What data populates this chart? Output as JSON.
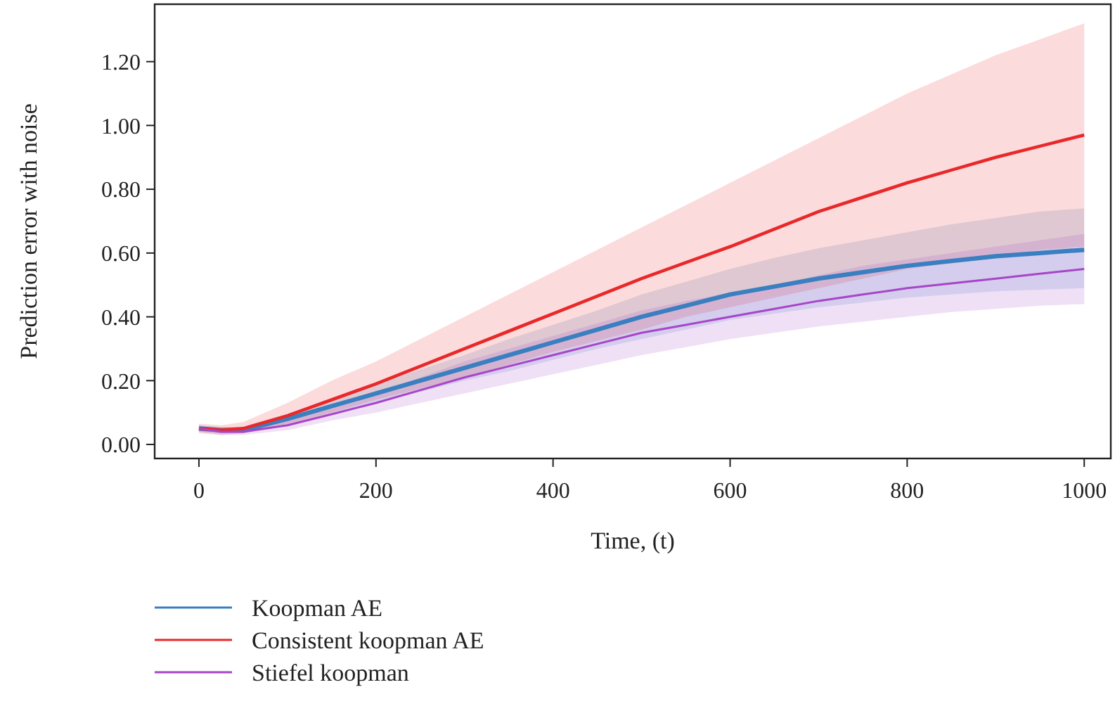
{
  "chart_data": {
    "type": "line",
    "xlabel": "Time, (t)",
    "ylabel": "Prediction error with noise",
    "x": [
      0,
      25,
      50,
      100,
      150,
      200,
      250,
      300,
      350,
      400,
      450,
      500,
      550,
      600,
      650,
      700,
      750,
      800,
      850,
      900,
      950,
      1000
    ],
    "series": [
      {
        "name": "Koopman AE",
        "color": "#3a7fc0",
        "values": [
          0.05,
          0.045,
          0.045,
          0.08,
          0.12,
          0.16,
          0.2,
          0.24,
          0.28,
          0.32,
          0.36,
          0.4,
          0.435,
          0.47,
          0.495,
          0.52,
          0.54,
          0.56,
          0.575,
          0.59,
          0.6,
          0.61
        ],
        "lower": [
          0.04,
          0.035,
          0.035,
          0.065,
          0.1,
          0.13,
          0.165,
          0.2,
          0.23,
          0.265,
          0.3,
          0.33,
          0.36,
          0.39,
          0.41,
          0.43,
          0.445,
          0.46,
          0.47,
          0.48,
          0.485,
          0.49
        ],
        "upper": [
          0.06,
          0.055,
          0.055,
          0.095,
          0.14,
          0.19,
          0.235,
          0.28,
          0.33,
          0.375,
          0.42,
          0.47,
          0.51,
          0.55,
          0.585,
          0.615,
          0.64,
          0.665,
          0.69,
          0.71,
          0.73,
          0.74
        ]
      },
      {
        "name": "Consistent koopman AE",
        "color": "#e8282a",
        "values": [
          0.05,
          0.045,
          0.05,
          0.09,
          0.14,
          0.19,
          0.245,
          0.3,
          0.355,
          0.41,
          0.465,
          0.52,
          0.57,
          0.62,
          0.675,
          0.73,
          0.775,
          0.82,
          0.86,
          0.9,
          0.935,
          0.97
        ],
        "lower": [
          0.035,
          0.03,
          0.035,
          0.06,
          0.1,
          0.14,
          0.175,
          0.21,
          0.25,
          0.29,
          0.325,
          0.36,
          0.4,
          0.43,
          0.46,
          0.49,
          0.52,
          0.55,
          0.57,
          0.59,
          0.61,
          0.62
        ],
        "upper": [
          0.065,
          0.06,
          0.07,
          0.13,
          0.2,
          0.26,
          0.33,
          0.4,
          0.47,
          0.54,
          0.61,
          0.68,
          0.75,
          0.82,
          0.89,
          0.96,
          1.03,
          1.1,
          1.16,
          1.22,
          1.27,
          1.32
        ]
      },
      {
        "name": "Stiefel koopman",
        "color": "#a845c8",
        "values": [
          0.05,
          0.04,
          0.04,
          0.06,
          0.095,
          0.13,
          0.17,
          0.21,
          0.245,
          0.28,
          0.315,
          0.35,
          0.375,
          0.4,
          0.425,
          0.45,
          0.47,
          0.49,
          0.505,
          0.52,
          0.535,
          0.55
        ],
        "lower": [
          0.04,
          0.03,
          0.03,
          0.045,
          0.075,
          0.1,
          0.13,
          0.16,
          0.19,
          0.22,
          0.25,
          0.28,
          0.305,
          0.33,
          0.35,
          0.37,
          0.385,
          0.4,
          0.415,
          0.425,
          0.435,
          0.44
        ],
        "upper": [
          0.06,
          0.05,
          0.05,
          0.075,
          0.115,
          0.16,
          0.21,
          0.26,
          0.3,
          0.34,
          0.38,
          0.42,
          0.45,
          0.475,
          0.5,
          0.53,
          0.56,
          0.58,
          0.6,
          0.62,
          0.64,
          0.66
        ]
      }
    ],
    "xlim": [
      -50,
      1030
    ],
    "xticks": [
      0,
      200,
      400,
      600,
      800,
      1000
    ],
    "ylim": [
      -0.044,
      1.38
    ],
    "yticks": [
      {
        "value": 0,
        "label": "0.00"
      },
      {
        "value": 0.2,
        "label": "0.20"
      },
      {
        "value": 0.4,
        "label": "0.40"
      },
      {
        "value": 0.6,
        "label": "0.60"
      },
      {
        "value": 0.8,
        "label": "0.80"
      },
      {
        "value": 1,
        "label": "1.00"
      },
      {
        "value": 1.2,
        "label": "1.20"
      }
    ],
    "grid": false,
    "legend": "bottom left",
    "marker": "none",
    "line_style": "solid"
  }
}
